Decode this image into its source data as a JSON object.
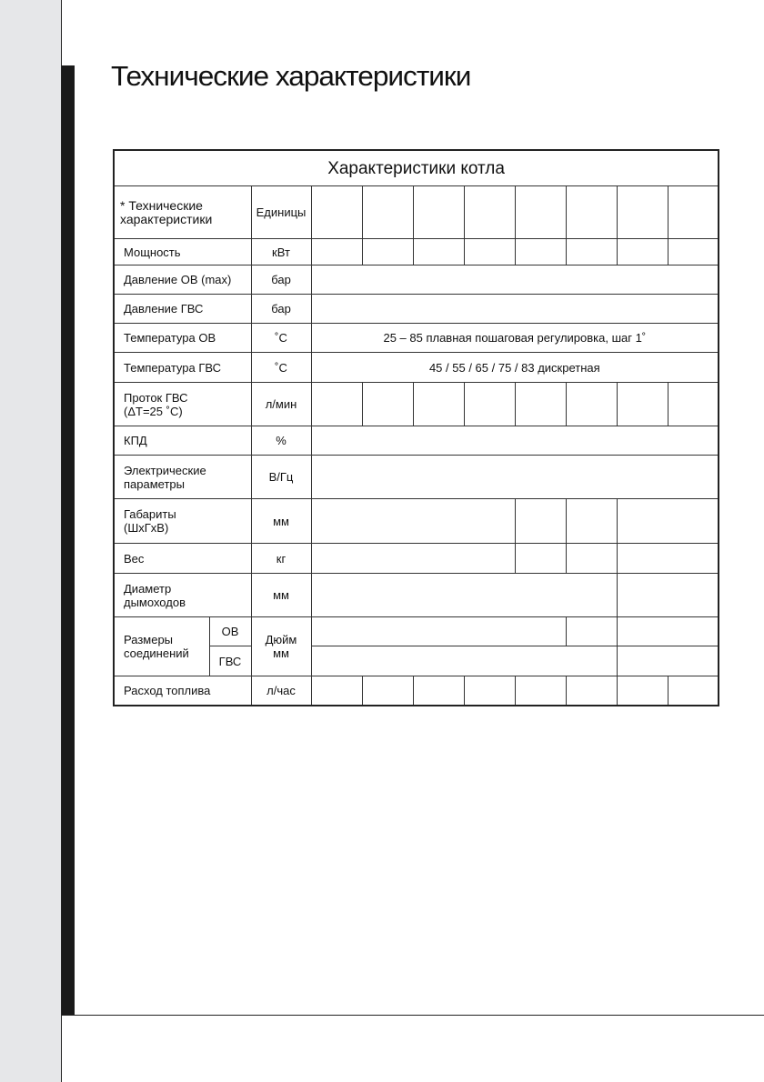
{
  "title": "Технические характеристики",
  "table": {
    "caption": "Характеристики котла",
    "header": {
      "param": "* Технические характеристики",
      "units": "Единицы"
    },
    "rows": {
      "power": {
        "label": "Мощность",
        "unit": "кВт"
      },
      "p_heat": {
        "label": "Давление ОВ (max)",
        "unit": "бар"
      },
      "p_dhw": {
        "label": "Давление ГВС",
        "unit": "бар"
      },
      "t_heat": {
        "label": "Температура ОВ",
        "unit": "˚C",
        "value": "25 – 85 плавная пошаговая регулировка, шаг 1˚"
      },
      "t_dhw": {
        "label": "Температура ГВС",
        "unit": "˚C",
        "value": "45 / 55 / 65 / 75 / 83 дискретная"
      },
      "flow": {
        "label": "Проток ГВС",
        "label2": "(ΔT=25 ˚C)",
        "unit": "л/мин"
      },
      "eff": {
        "label": "КПД",
        "unit": "%"
      },
      "elec": {
        "label": "Электрические",
        "label2": "параметры",
        "unit": "В/Гц"
      },
      "dims": {
        "label": "Габариты",
        "label2": "(ШxГxВ)",
        "unit": "мм"
      },
      "weight": {
        "label": "Вес",
        "unit": "кг"
      },
      "flue": {
        "label": "Диаметр",
        "label2": "дымоходов",
        "unit": "мм"
      },
      "conn": {
        "label": "Размеры соединений",
        "sub1": "ОВ",
        "sub2": "ГВС",
        "unit": "Дюйм мм"
      },
      "fuel": {
        "label": "Расход топлива",
        "unit": "л/час"
      }
    }
  }
}
